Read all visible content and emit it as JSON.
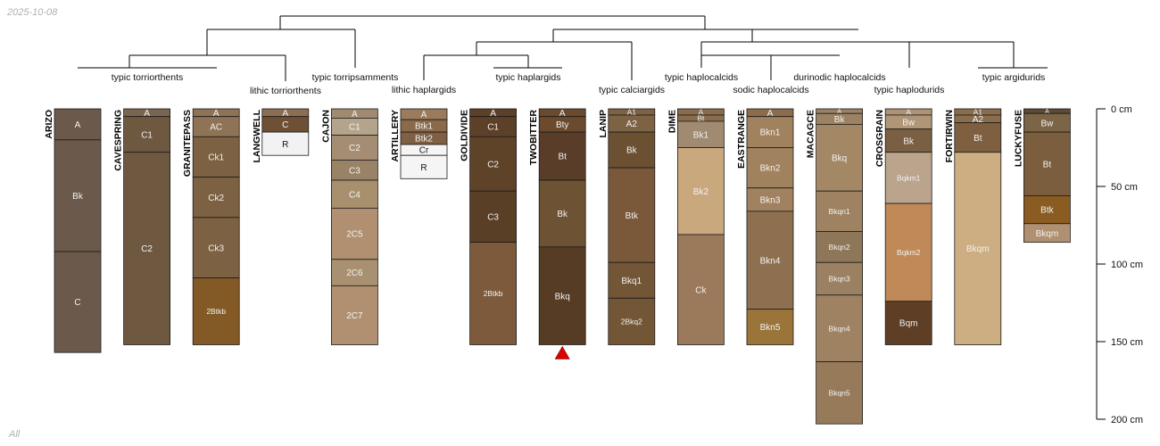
{
  "header": {
    "date": "2025-10-08"
  },
  "footer": {
    "subset_label": "All"
  },
  "colors": {
    "line": "#000000",
    "horizon_border": "#1a1a1a",
    "marker": "#dd0000"
  },
  "scale": {
    "unit": "cm",
    "ticks": [
      {
        "depth": 0,
        "label": "0 cm"
      },
      {
        "depth": 50,
        "label": "50 cm"
      },
      {
        "depth": 100,
        "label": "100 cm"
      },
      {
        "depth": 150,
        "label": "150 cm"
      },
      {
        "depth": 200,
        "label": "200 cm"
      }
    ]
  },
  "taxa": [
    {
      "id": "t1",
      "label": "typic torriorthents"
    },
    {
      "id": "t2",
      "label": "lithic torriorthents"
    },
    {
      "id": "t3",
      "label": "typic torripsamments"
    },
    {
      "id": "t4",
      "label": "lithic haplargids"
    },
    {
      "id": "t5",
      "label": "typic haplargids"
    },
    {
      "id": "t6",
      "label": "typic calciargids"
    },
    {
      "id": "t7",
      "label": "typic haplocalcids"
    },
    {
      "id": "t8",
      "label": "sodic haplocalcids"
    },
    {
      "id": "t9",
      "label": "durinodic haplocalcids"
    },
    {
      "id": "t10",
      "label": "typic haplodurids"
    },
    {
      "id": "t11",
      "label": "typic argidurids"
    }
  ],
  "profiles": [
    {
      "name": "ARIZO",
      "horizons": [
        {
          "name": "A",
          "top": 0,
          "bottom": 20,
          "color": "#6b5a4b"
        },
        {
          "name": "Bk",
          "top": 20,
          "bottom": 92,
          "color": "#6b5a4b"
        },
        {
          "name": "C",
          "top": 92,
          "bottom": 157,
          "color": "#6b5a4b"
        }
      ]
    },
    {
      "name": "CAVESPRING",
      "horizons": [
        {
          "name": "A",
          "top": 0,
          "bottom": 5,
          "color": "#7a6550"
        },
        {
          "name": "C1",
          "top": 5,
          "bottom": 28,
          "color": "#6f5840"
        },
        {
          "name": "C2",
          "top": 28,
          "bottom": 152,
          "color": "#6f5840"
        }
      ]
    },
    {
      "name": "GRANITEPASS",
      "horizons": [
        {
          "name": "A",
          "top": 0,
          "bottom": 5,
          "color": "#8e7356"
        },
        {
          "name": "AC",
          "top": 5,
          "bottom": 18,
          "color": "#8e7356"
        },
        {
          "name": "Ck1",
          "top": 18,
          "bottom": 44,
          "color": "#7c6142"
        },
        {
          "name": "Ck2",
          "top": 44,
          "bottom": 70,
          "color": "#7c6142"
        },
        {
          "name": "Ck3",
          "top": 70,
          "bottom": 109,
          "color": "#7c6142"
        },
        {
          "name": "2Btkb",
          "top": 109,
          "bottom": 152,
          "color": "#835a25"
        }
      ]
    },
    {
      "name": "LANGWELL",
      "horizons": [
        {
          "name": "A",
          "top": 0,
          "bottom": 5,
          "color": "#8a6f52"
        },
        {
          "name": "C",
          "top": 5,
          "bottom": 15,
          "color": "#6e5034"
        },
        {
          "name": "R",
          "top": 15,
          "bottom": 30,
          "color": "#f2f2f2"
        }
      ]
    },
    {
      "name": "CAJON",
      "horizons": [
        {
          "name": "A",
          "top": 0,
          "bottom": 6,
          "color": "#a08a70"
        },
        {
          "name": "C1",
          "top": 6,
          "bottom": 17,
          "color": "#b5a48c"
        },
        {
          "name": "C2",
          "top": 17,
          "bottom": 33,
          "color": "#a48d72"
        },
        {
          "name": "C3",
          "top": 33,
          "bottom": 46,
          "color": "#9a8266"
        },
        {
          "name": "C4",
          "top": 46,
          "bottom": 64,
          "color": "#a8906f"
        },
        {
          "name": "2C5",
          "top": 64,
          "bottom": 97,
          "color": "#b09070"
        },
        {
          "name": "2C6",
          "top": 97,
          "bottom": 114,
          "color": "#a89071"
        },
        {
          "name": "2C7",
          "top": 114,
          "bottom": 152,
          "color": "#b09070"
        }
      ]
    },
    {
      "name": "ARTILLERY",
      "horizons": [
        {
          "name": "A",
          "top": 0,
          "bottom": 7,
          "color": "#9a7b5b"
        },
        {
          "name": "Btk1",
          "top": 7,
          "bottom": 15,
          "color": "#8a6a4a"
        },
        {
          "name": "Btk2",
          "top": 15,
          "bottom": 23,
          "color": "#7f6043"
        },
        {
          "name": "Cr",
          "top": 23,
          "bottom": 30,
          "color": "#f5f5f5"
        },
        {
          "name": "R",
          "top": 30,
          "bottom": 45,
          "color": "#f5f5f5"
        }
      ]
    },
    {
      "name": "GOLDIVIDE",
      "horizons": [
        {
          "name": "A",
          "top": 0,
          "bottom": 5,
          "color": "#5c4028"
        },
        {
          "name": "C1",
          "top": 5,
          "bottom": 18,
          "color": "#5c4028"
        },
        {
          "name": "C2",
          "top": 18,
          "bottom": 53,
          "color": "#5e4329"
        },
        {
          "name": "C3",
          "top": 53,
          "bottom": 86,
          "color": "#5a3f27"
        },
        {
          "name": "2Btkb",
          "top": 86,
          "bottom": 152,
          "color": "#7d5a3c"
        }
      ]
    },
    {
      "name": "TWOBITTER",
      "marker": true,
      "horizons": [
        {
          "name": "A",
          "top": 0,
          "bottom": 5,
          "color": "#6b4a2e"
        },
        {
          "name": "Bty",
          "top": 5,
          "bottom": 15,
          "color": "#6b4a2e"
        },
        {
          "name": "Bt",
          "top": 15,
          "bottom": 46,
          "color": "#5a3d28"
        },
        {
          "name": "Bk",
          "top": 46,
          "bottom": 89,
          "color": "#6e5234"
        },
        {
          "name": "Bkq",
          "top": 89,
          "bottom": 152,
          "color": "#563c25"
        }
      ]
    },
    {
      "name": "LANIP",
      "horizons": [
        {
          "name": "A1",
          "top": 0,
          "bottom": 4,
          "color": "#7e6244"
        },
        {
          "name": "A2",
          "top": 4,
          "bottom": 15,
          "color": "#7e6244"
        },
        {
          "name": "Bk",
          "top": 15,
          "bottom": 38,
          "color": "#6b5032"
        },
        {
          "name": "Btk",
          "top": 38,
          "bottom": 99,
          "color": "#7a583a"
        },
        {
          "name": "Bkq1",
          "top": 99,
          "bottom": 122,
          "color": "#725636"
        },
        {
          "name": "2Bkq2",
          "top": 122,
          "bottom": 152,
          "color": "#725636"
        }
      ]
    },
    {
      "name": "DIME",
      "horizons": [
        {
          "name": "A",
          "top": 0,
          "bottom": 4,
          "color": "#8a6c4c"
        },
        {
          "name": "Bt",
          "top": 4,
          "bottom": 8,
          "color": "#8a6c4c"
        },
        {
          "name": "Bk1",
          "top": 8,
          "bottom": 25,
          "color": "#a08a72"
        },
        {
          "name": "Bk2",
          "top": 25,
          "bottom": 81,
          "color": "#c9a87e"
        },
        {
          "name": "Ck",
          "top": 81,
          "bottom": 152,
          "color": "#9a7a5a"
        }
      ]
    },
    {
      "name": "EASTRANGE",
      "horizons": [
        {
          "name": "A",
          "top": 0,
          "bottom": 5,
          "color": "#8d6c4c"
        },
        {
          "name": "Bkn1",
          "top": 5,
          "bottom": 25,
          "color": "#a0825f"
        },
        {
          "name": "Bkn2",
          "top": 25,
          "bottom": 51,
          "color": "#a0825f"
        },
        {
          "name": "Bkn3",
          "top": 51,
          "bottom": 66,
          "color": "#a08260"
        },
        {
          "name": "Bkn4",
          "top": 66,
          "bottom": 129,
          "color": "#8e7050"
        },
        {
          "name": "Bkn5",
          "top": 129,
          "bottom": 152,
          "color": "#9a7438"
        }
      ]
    },
    {
      "name": "MACAGCE",
      "horizons": [
        {
          "name": "A",
          "top": 0,
          "bottom": 3,
          "color": "#9c8264"
        },
        {
          "name": "Bk",
          "top": 3,
          "bottom": 10,
          "color": "#9c8264"
        },
        {
          "name": "Bkq",
          "top": 10,
          "bottom": 53,
          "color": "#a48866"
        },
        {
          "name": "Bkqn1",
          "top": 53,
          "bottom": 79,
          "color": "#9e8262"
        },
        {
          "name": "Bkqn2",
          "top": 79,
          "bottom": 99,
          "color": "#8e7658"
        },
        {
          "name": "Bkqn3",
          "top": 99,
          "bottom": 120,
          "color": "#9c8062"
        },
        {
          "name": "Bkqn4",
          "top": 120,
          "bottom": 163,
          "color": "#9e8262"
        },
        {
          "name": "Bkqn5",
          "top": 163,
          "bottom": 203,
          "color": "#967a5a"
        }
      ]
    },
    {
      "name": "CROSGRAIN",
      "horizons": [
        {
          "name": "A",
          "top": 0,
          "bottom": 4,
          "color": "#ad9373"
        },
        {
          "name": "Bw",
          "top": 4,
          "bottom": 13,
          "color": "#b09676"
        },
        {
          "name": "Bk",
          "top": 13,
          "bottom": 28,
          "color": "#7a5f42"
        },
        {
          "name": "Bqkm1",
          "top": 28,
          "bottom": 61,
          "color": "#baa48c"
        },
        {
          "name": "Bqkm2",
          "top": 61,
          "bottom": 124,
          "color": "#c08a58"
        },
        {
          "name": "Bqm",
          "top": 124,
          "bottom": 152,
          "color": "#5e3f25"
        }
      ]
    },
    {
      "name": "FORTIRWIN",
      "horizons": [
        {
          "name": "A1",
          "top": 0,
          "bottom": 4,
          "color": "#8a6d4d"
        },
        {
          "name": "A2",
          "top": 4,
          "bottom": 9,
          "color": "#8a6d4d"
        },
        {
          "name": "Bt",
          "top": 9,
          "bottom": 28,
          "color": "#7e6040"
        },
        {
          "name": "Bkqm",
          "top": 28,
          "bottom": 152,
          "color": "#cdae82"
        }
      ]
    },
    {
      "name": "LUCKYFUSE",
      "horizons": [
        {
          "name": "A",
          "top": 0,
          "bottom": 3,
          "color": "#5e4a36"
        },
        {
          "name": "Bw",
          "top": 3,
          "bottom": 15,
          "color": "#7c6446"
        },
        {
          "name": "Bt",
          "top": 15,
          "bottom": 56,
          "color": "#7a5e3e"
        },
        {
          "name": "Btk",
          "top": 56,
          "bottom": 74,
          "color": "#8a5c22"
        },
        {
          "name": "Bkqm",
          "top": 74,
          "bottom": 86,
          "color": "#b09070"
        }
      ]
    }
  ]
}
